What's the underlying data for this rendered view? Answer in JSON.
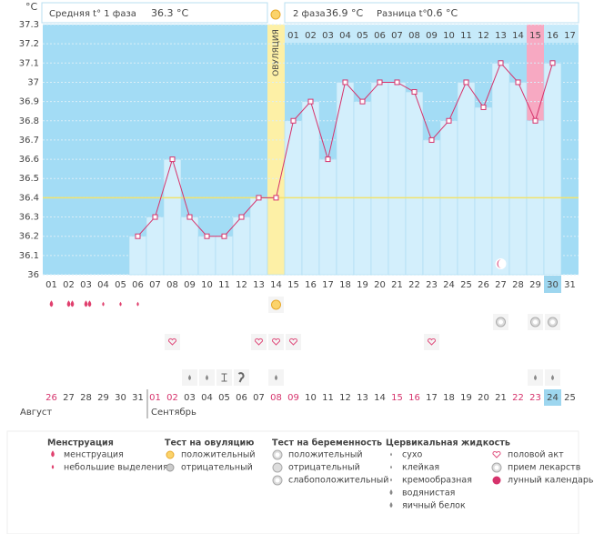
{
  "header": {
    "unit": "°C",
    "phase1_label": "Средняя t° 1 фаза",
    "phase1_avg": "36.3 °C",
    "phase2_label": "2 фаза",
    "phase2_avg": "36.9 °C",
    "diff_label": "Разница t°",
    "diff": "0.6 °C",
    "ovulation": "ОВУЛЯЦИЯ"
  },
  "chart_data": {
    "type": "line",
    "categories": [
      "01",
      "02",
      "03",
      "04",
      "05",
      "06",
      "07",
      "08",
      "09",
      "10",
      "11",
      "12",
      "13",
      "14",
      "15",
      "16",
      "17",
      "18",
      "19",
      "20",
      "21",
      "22",
      "23",
      "24",
      "25",
      "26",
      "27",
      "28",
      "29",
      "30",
      "31"
    ],
    "values": [
      null,
      null,
      null,
      null,
      null,
      36.2,
      36.3,
      36.6,
      36.3,
      36.2,
      36.2,
      36.3,
      36.4,
      36.4,
      36.8,
      36.9,
      36.6,
      37.0,
      36.9,
      37.0,
      37.0,
      36.95,
      36.7,
      36.8,
      37.0,
      36.87,
      37.1,
      37.0,
      36.8,
      37.1,
      null
    ],
    "ylim": [
      36,
      37.3
    ],
    "yticks": [
      36,
      36.1,
      36.2,
      36.3,
      36.4,
      36.5,
      36.6,
      36.7,
      36.8,
      36.9,
      37,
      37.1,
      37.2,
      37.3
    ],
    "color": "#d6336c"
  },
  "phase2_days": [
    "01",
    "02",
    "03",
    "04",
    "05",
    "06",
    "07",
    "08",
    "09",
    "10",
    "11",
    "12",
    "13",
    "14",
    "15",
    "16",
    "17"
  ],
  "dates": [
    "26",
    "27",
    "28",
    "29",
    "30",
    "31",
    "01",
    "02",
    "03",
    "04",
    "05",
    "06",
    "07",
    "08",
    "09",
    "10",
    "11",
    "12",
    "13",
    "14",
    "15",
    "16",
    "17",
    "18",
    "19",
    "20",
    "21",
    "22",
    "23",
    "24",
    "25"
  ],
  "months": [
    "Август",
    "Сентябрь"
  ],
  "legend": {
    "menstruation": {
      "title": "Менструация",
      "items": [
        "менструация",
        "небольшие выделения"
      ]
    },
    "ovulation_test": {
      "title": "Тест на овуляцию",
      "items": [
        "положительный",
        "отрицательный"
      ]
    },
    "pregnancy_test": {
      "title": "Тест на беременность",
      "items": [
        "положительный",
        "отрицательный",
        "слабоположительный"
      ]
    },
    "cervical": {
      "title": "Цервикальная жидкость",
      "items": [
        "сухо",
        "клейкая",
        "кремообразная",
        "водянистая",
        "яичный белок"
      ]
    },
    "other": {
      "items": [
        "половой акт",
        "прием лекарств",
        "лунный календарь"
      ]
    }
  }
}
